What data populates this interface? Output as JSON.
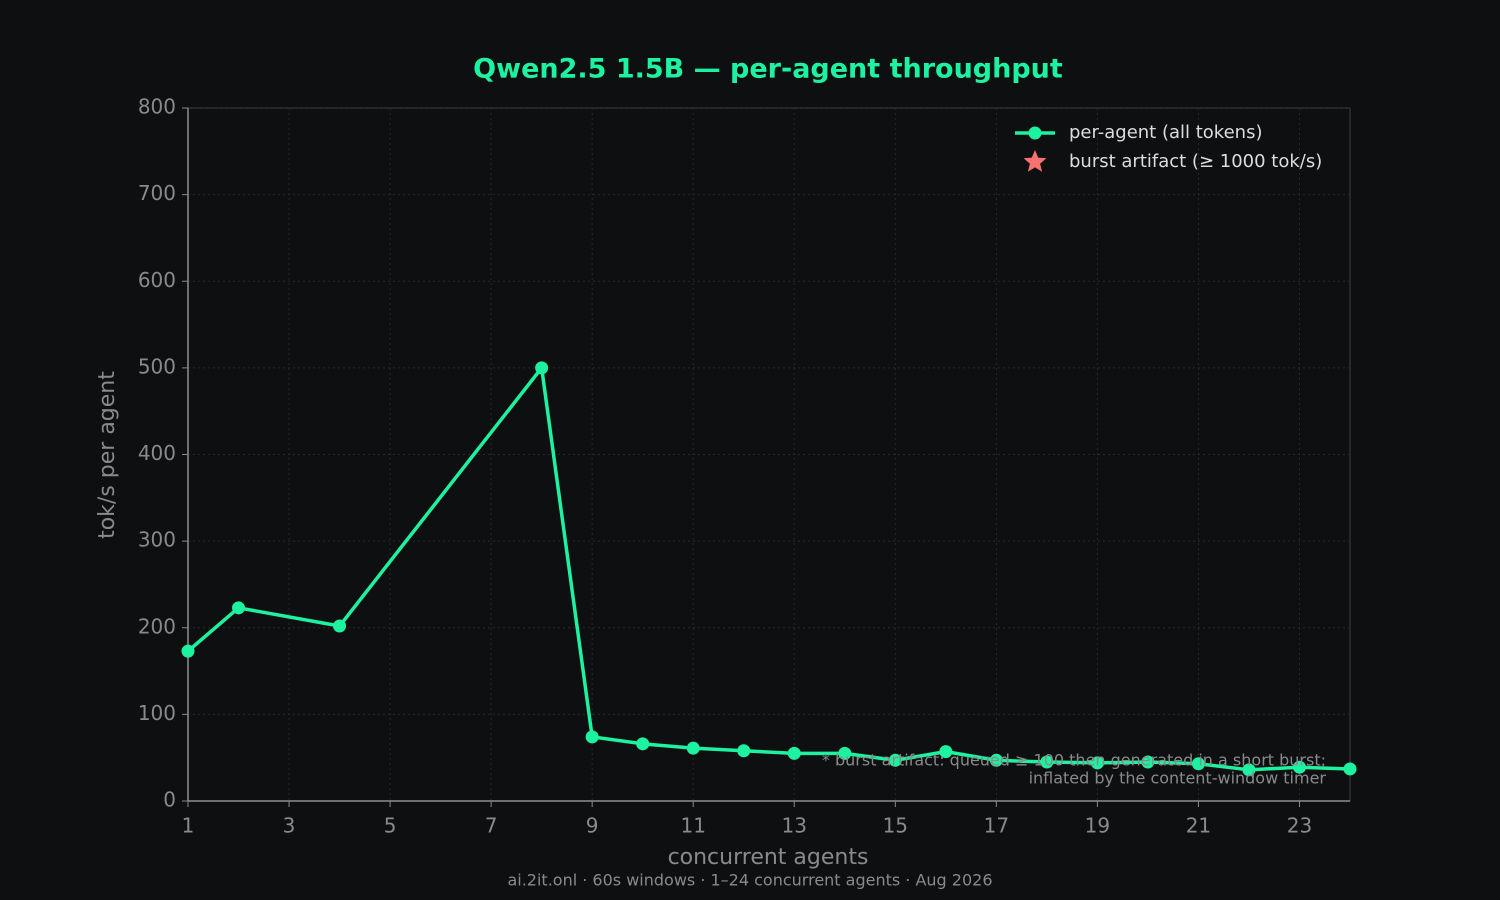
{
  "chart_data": {
    "type": "line",
    "title": "Qwen2.5 1.5B — per-agent throughput",
    "x_label": "concurrent agents",
    "y_label": "tok/s per agent",
    "footer": "ai.2it.onl · 60s windows · 1–24 concurrent agents · Aug 2026",
    "annotation": [
      "* burst artifact: queued ≥ 100 then generated in a short burst;",
      "inflated by the content-window timer"
    ],
    "x": [
      1,
      2,
      4,
      8,
      9,
      10,
      11,
      12,
      13,
      14,
      15,
      16,
      17,
      18,
      19,
      20,
      21,
      22,
      23,
      24
    ],
    "series": [
      {
        "name": "per-agent (all tokens)",
        "color": "#1df2a0",
        "marker": "circle",
        "values": [
          173,
          223,
          202,
          500,
          74,
          66,
          61,
          58,
          55,
          55,
          47,
          57,
          47,
          45,
          44,
          45,
          43,
          36,
          39,
          37
        ]
      },
      {
        "name": "burst artifact (≥ 1000 tok/s)",
        "color": "#f87171",
        "marker": "star",
        "values": [
          null,
          null,
          null,
          null,
          null,
          null,
          null,
          null,
          null,
          null,
          null,
          null,
          null,
          null,
          null,
          null,
          null,
          null,
          null,
          null
        ]
      }
    ],
    "xlim": [
      1,
      24
    ],
    "ylim": [
      0,
      800
    ],
    "xticks": [
      1,
      3,
      5,
      7,
      9,
      11,
      13,
      15,
      17,
      19,
      21,
      23
    ],
    "yticks": [
      0,
      100,
      200,
      300,
      400,
      500,
      600,
      700,
      800
    ],
    "grid": true,
    "legend": "upper-right"
  }
}
